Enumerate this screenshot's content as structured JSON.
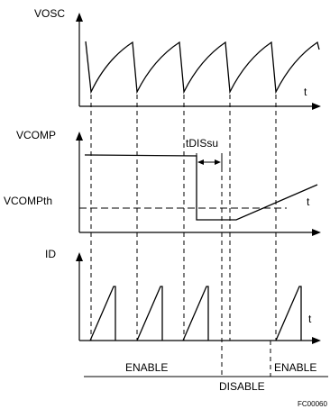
{
  "diagram": {
    "panels": {
      "vosc": {
        "name": "VOSC",
        "axis": "t"
      },
      "vcomp": {
        "name": "VCOMP",
        "axis": "t",
        "threshold": "VCOMPth",
        "interval": "tDISsu"
      },
      "id": {
        "name": "ID",
        "axis": "t"
      }
    },
    "states": {
      "enable_left": "ENABLE",
      "disable": "DISABLE",
      "enable_right": "ENABLE"
    },
    "figure_code": "FC00060"
  },
  "colors": {
    "stroke": "#000000",
    "background": "#ffffff"
  }
}
